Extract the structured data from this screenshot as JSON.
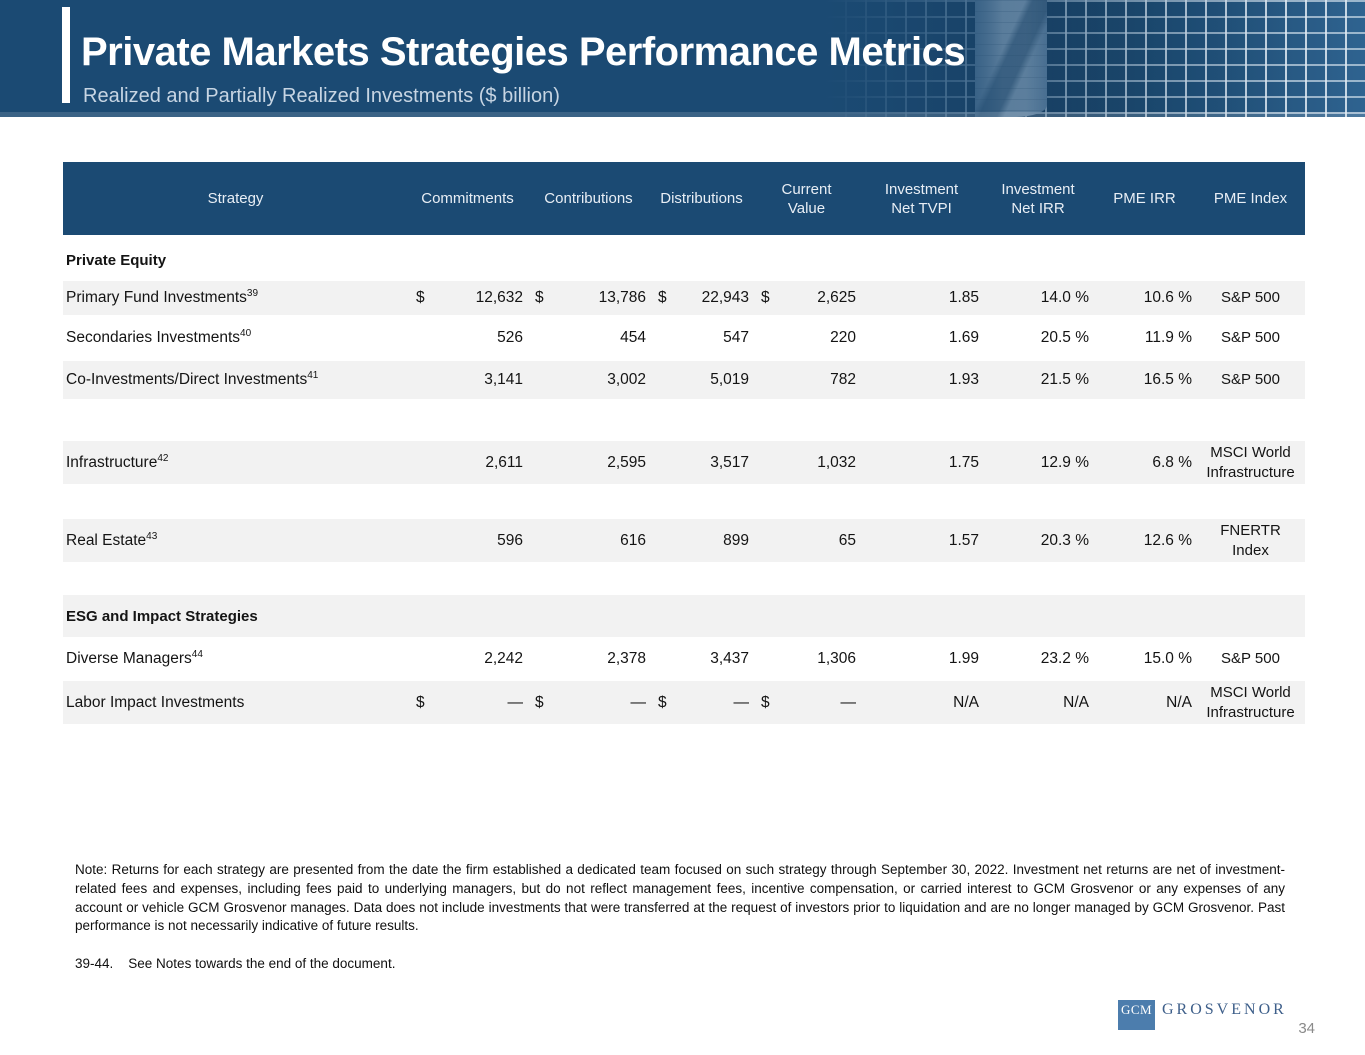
{
  "theme": {
    "navy": "#1B4A73",
    "row_stripe": "#F2F2F2",
    "logo_square_blue": "#4C7DAD",
    "logo_word_blue": "#3E5F8A",
    "page_number_gray": "#8A8A8A"
  },
  "banner": {
    "title": "Private Markets Strategies Performance Metrics",
    "subtitle": "Realized and Partially Realized Investments ($ billion)"
  },
  "table": {
    "columns": [
      "Strategy",
      "Commitments",
      "Contributions",
      "Distributions",
      "Current\nValue",
      "Investment\nNet TVPI",
      "Investment\nNet IRR",
      "PME IRR",
      "PME Index"
    ],
    "rows": [
      {
        "type": "section",
        "label": "Private Equity"
      },
      {
        "type": "data",
        "label": "Primary Fund Investments",
        "sup": "39",
        "money": [
          [
            "$",
            "12,632"
          ],
          [
            "$",
            "13,786"
          ],
          [
            "$",
            "22,943"
          ],
          [
            "$",
            "2,625"
          ]
        ],
        "tvpi": "1.85",
        "net_irr": "14.0 %",
        "pme_irr": "10.6 %",
        "pme_index": "S&P 500"
      },
      {
        "type": "spacer"
      },
      {
        "type": "data",
        "label": "Secondaries Investments",
        "sup": "40",
        "money": [
          [
            "",
            "526"
          ],
          [
            "",
            "454"
          ],
          [
            "",
            "547"
          ],
          [
            "",
            "220"
          ]
        ],
        "tvpi": "1.69",
        "net_irr": "20.5 %",
        "pme_irr": "11.9 %",
        "pme_index": "S&P 500"
      },
      {
        "type": "spacer"
      },
      {
        "type": "data",
        "label": "Co-Investments/Direct Investments",
        "sup": "41",
        "money": [
          [
            "",
            "3,141"
          ],
          [
            "",
            "3,002"
          ],
          [
            "",
            "5,019"
          ],
          [
            "",
            "782"
          ]
        ],
        "tvpi": "1.93",
        "net_irr": "21.5 %",
        "pme_irr": "16.5 %",
        "pme_index": "S&P 500"
      },
      {
        "type": "spacer"
      },
      {
        "type": "data",
        "label": "Infrastructure",
        "sup": "42",
        "money": [
          [
            "",
            "2,611"
          ],
          [
            "",
            "2,595"
          ],
          [
            "",
            "3,517"
          ],
          [
            "",
            "1,032"
          ]
        ],
        "tvpi": "1.75",
        "net_irr": "12.9 %",
        "pme_irr": "6.8 %",
        "pme_index": "MSCI World\nInfrastructure"
      },
      {
        "type": "spacer"
      },
      {
        "type": "data",
        "label": "Real Estate",
        "sup": "43",
        "money": [
          [
            "",
            "596"
          ],
          [
            "",
            "616"
          ],
          [
            "",
            "899"
          ],
          [
            "",
            "65"
          ]
        ],
        "tvpi": "1.57",
        "net_irr": "20.3 %",
        "pme_irr": "12.6 %",
        "pme_index": "FNERTR\nIndex"
      },
      {
        "type": "spacer"
      },
      {
        "type": "section",
        "label": "ESG and Impact Strategies"
      },
      {
        "type": "data",
        "label": "Diverse Managers",
        "sup": "44",
        "money": [
          [
            "",
            "2,242"
          ],
          [
            "",
            "2,378"
          ],
          [
            "",
            "3,437"
          ],
          [
            "",
            "1,306"
          ]
        ],
        "tvpi": "1.99",
        "net_irr": "23.2 %",
        "pme_irr": "15.0 %",
        "pme_index": "S&P 500"
      },
      {
        "type": "spacer"
      },
      {
        "type": "data",
        "label": "Labor Impact Investments",
        "sup": "",
        "money": [
          [
            "$",
            "—"
          ],
          [
            "$",
            "—"
          ],
          [
            "$",
            "—"
          ],
          [
            "$",
            "—"
          ]
        ],
        "tvpi": "N/A",
        "net_irr": "N/A",
        "pme_irr": "N/A",
        "pme_index": "MSCI World\nInfrastructure"
      }
    ]
  },
  "note": {
    "text": "Note: Returns for each strategy are presented from the date the firm established a dedicated team focused on such strategy through September 30, 2022. Investment net returns are net of investment-related fees and expenses, including fees paid to underlying managers, but do not reflect management fees, incentive compensation, or carried interest to GCM Grosvenor or any expenses of any account or vehicle GCM Grosvenor manages. Data does not include investments that were transferred at the request of investors prior to liquidation and are no longer managed by GCM Grosvenor. Past performance is not necessarily indicative of future results."
  },
  "footnote": {
    "ref": "39-44.",
    "text": "See Notes towards the end of the document."
  },
  "footer": {
    "logo_acronym": "GCM",
    "logo_name": "GROSVENOR",
    "page_number": "34"
  }
}
